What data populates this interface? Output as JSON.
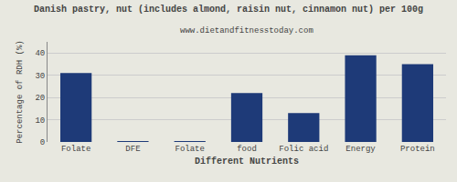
{
  "chart_data": {
    "type": "bar",
    "title": "Danish pastry, nut (includes almond, raisin nut, cinnamon nut) per 100g",
    "subtitle": "www.dietandfitnesstoday.com",
    "xlabel": "Different Nutrients",
    "ylabel": "Percentage of RDH (%)",
    "categories": [
      "Folate",
      "DFE",
      "Folate",
      "food",
      "Folic acid",
      "Energy",
      "Protein"
    ],
    "values": [
      31,
      0.3,
      0.3,
      22,
      13,
      39,
      35
    ],
    "color": "#1e3a78",
    "ylim": [
      0,
      45
    ],
    "yticks": [
      0,
      10,
      20,
      30,
      40
    ],
    "grid": true
  }
}
